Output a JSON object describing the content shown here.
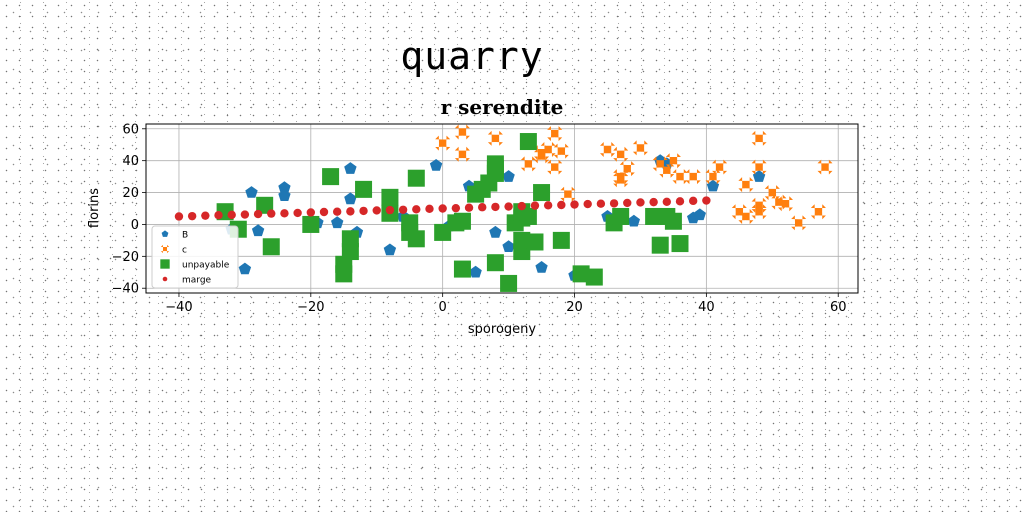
{
  "page": {
    "title": "quarry"
  },
  "colors": {
    "B": "#1f77b4",
    "c": "#ff7f0e",
    "unpayable": "#2ca02c",
    "marge": "#d62728"
  },
  "chart_data": {
    "type": "scatter",
    "title": "r serendite",
    "xlabel": "sporogeny",
    "ylabel": "florins",
    "xlim": [
      -45,
      63
    ],
    "ylim": [
      -43,
      63
    ],
    "xticks": [
      -40,
      -20,
      0,
      20,
      40,
      60
    ],
    "xtick_labels": [
      "−40",
      "−20",
      "0",
      "20",
      "40",
      "60"
    ],
    "yticks": [
      -40,
      -20,
      0,
      20,
      40,
      60
    ],
    "ytick_labels": [
      "−40",
      "−20",
      "0",
      "20",
      "40",
      "60"
    ],
    "grid": true,
    "legend_position": "lower-left",
    "series": [
      {
        "name": "B",
        "marker": "pentagon",
        "color": "#1f77b4",
        "points": [
          [
            -32,
            -3
          ],
          [
            -30,
            -28
          ],
          [
            -29,
            20
          ],
          [
            -28,
            -4
          ],
          [
            -24,
            23
          ],
          [
            -24,
            18
          ],
          [
            -19,
            1
          ],
          [
            -16,
            1
          ],
          [
            -14,
            35
          ],
          [
            -14,
            16
          ],
          [
            -13,
            -5
          ],
          [
            -8,
            -16
          ],
          [
            -8,
            6
          ],
          [
            -6,
            5
          ],
          [
            -1,
            37
          ],
          [
            1,
            -1
          ],
          [
            4,
            24
          ],
          [
            5,
            -30
          ],
          [
            8,
            -5
          ],
          [
            10,
            30
          ],
          [
            10,
            -14
          ],
          [
            15,
            -27
          ],
          [
            20,
            -32
          ],
          [
            25,
            5
          ],
          [
            29,
            2
          ],
          [
            33,
            40
          ],
          [
            34,
            38
          ],
          [
            38,
            4
          ],
          [
            39,
            6
          ],
          [
            41,
            24
          ],
          [
            48,
            30
          ]
        ]
      },
      {
        "name": "c",
        "marker": "x",
        "color": "#ff7f0e",
        "points": [
          [
            0,
            51
          ],
          [
            3,
            44
          ],
          [
            3,
            58
          ],
          [
            8,
            54
          ],
          [
            13,
            38
          ],
          [
            15,
            43
          ],
          [
            15,
            45
          ],
          [
            16,
            47
          ],
          [
            17,
            57
          ],
          [
            17,
            36
          ],
          [
            18,
            46
          ],
          [
            19,
            19
          ],
          [
            25,
            47
          ],
          [
            27,
            44
          ],
          [
            27,
            28
          ],
          [
            27,
            30
          ],
          [
            28,
            35
          ],
          [
            30,
            48
          ],
          [
            33,
            38
          ],
          [
            34,
            34
          ],
          [
            35,
            40
          ],
          [
            36,
            30
          ],
          [
            38,
            30
          ],
          [
            41,
            30
          ],
          [
            42,
            36
          ],
          [
            45,
            8
          ],
          [
            46,
            5
          ],
          [
            46,
            25
          ],
          [
            48,
            54
          ],
          [
            48,
            36
          ],
          [
            48,
            8
          ],
          [
            48,
            12
          ],
          [
            50,
            20
          ],
          [
            51,
            14
          ],
          [
            52,
            13
          ],
          [
            54,
            1
          ],
          [
            57,
            8
          ],
          [
            58,
            36
          ]
        ]
      },
      {
        "name": "unpayable",
        "marker": "square",
        "color": "#2ca02c",
        "points": [
          [
            -33,
            8
          ],
          [
            -31,
            -3
          ],
          [
            -27,
            12
          ],
          [
            -26,
            -14
          ],
          [
            -20,
            0
          ],
          [
            -17,
            30
          ],
          [
            -15,
            -31
          ],
          [
            -15,
            -25
          ],
          [
            -14,
            -17
          ],
          [
            -14,
            -9
          ],
          [
            -12,
            22
          ],
          [
            -8,
            17
          ],
          [
            -8,
            7
          ],
          [
            -5,
            1
          ],
          [
            -5,
            -5
          ],
          [
            -4,
            -9
          ],
          [
            -4,
            29
          ],
          [
            0,
            -5
          ],
          [
            2,
            1
          ],
          [
            3,
            2
          ],
          [
            3,
            -28
          ],
          [
            5,
            19
          ],
          [
            6,
            22
          ],
          [
            7,
            26
          ],
          [
            8,
            32
          ],
          [
            8,
            35
          ],
          [
            8,
            38
          ],
          [
            8,
            -24
          ],
          [
            10,
            -37
          ],
          [
            11,
            1
          ],
          [
            12,
            4
          ],
          [
            12,
            8
          ],
          [
            12,
            -17
          ],
          [
            12,
            -10
          ],
          [
            13,
            52
          ],
          [
            13,
            5
          ],
          [
            14,
            -11
          ],
          [
            15,
            20
          ],
          [
            18,
            -10
          ],
          [
            21,
            -31
          ],
          [
            23,
            -33
          ],
          [
            26,
            1
          ],
          [
            27,
            5
          ],
          [
            32,
            5
          ],
          [
            33,
            -13
          ],
          [
            34,
            5
          ],
          [
            35,
            2
          ],
          [
            36,
            -12
          ]
        ]
      },
      {
        "name": "marge",
        "marker": "circle",
        "color": "#d62728",
        "points": [
          [
            -40,
            5
          ],
          [
            -38,
            5.2
          ],
          [
            -36,
            5.5
          ],
          [
            -34,
            5.8
          ],
          [
            -32,
            6
          ],
          [
            -30,
            6.2
          ],
          [
            -28,
            6.5
          ],
          [
            -26,
            6.8
          ],
          [
            -24,
            7
          ],
          [
            -22,
            7.2
          ],
          [
            -20,
            7.5
          ],
          [
            -18,
            7.8
          ],
          [
            -16,
            8
          ],
          [
            -14,
            8.2
          ],
          [
            -12,
            8.5
          ],
          [
            -10,
            8.8
          ],
          [
            -8,
            9
          ],
          [
            -6,
            9.2
          ],
          [
            -4,
            9.5
          ],
          [
            -2,
            9.8
          ],
          [
            0,
            10
          ],
          [
            2,
            10.2
          ],
          [
            4,
            10.5
          ],
          [
            6,
            10.8
          ],
          [
            8,
            11
          ],
          [
            10,
            11.2
          ],
          [
            12,
            11.5
          ],
          [
            14,
            11.8
          ],
          [
            16,
            12
          ],
          [
            18,
            12.2
          ],
          [
            20,
            12.5
          ],
          [
            22,
            12.8
          ],
          [
            24,
            13
          ],
          [
            26,
            13.2
          ],
          [
            28,
            13.5
          ],
          [
            30,
            13.8
          ],
          [
            32,
            14
          ],
          [
            34,
            14.2
          ],
          [
            36,
            14.5
          ],
          [
            38,
            14.8
          ],
          [
            40,
            15
          ]
        ]
      }
    ]
  }
}
